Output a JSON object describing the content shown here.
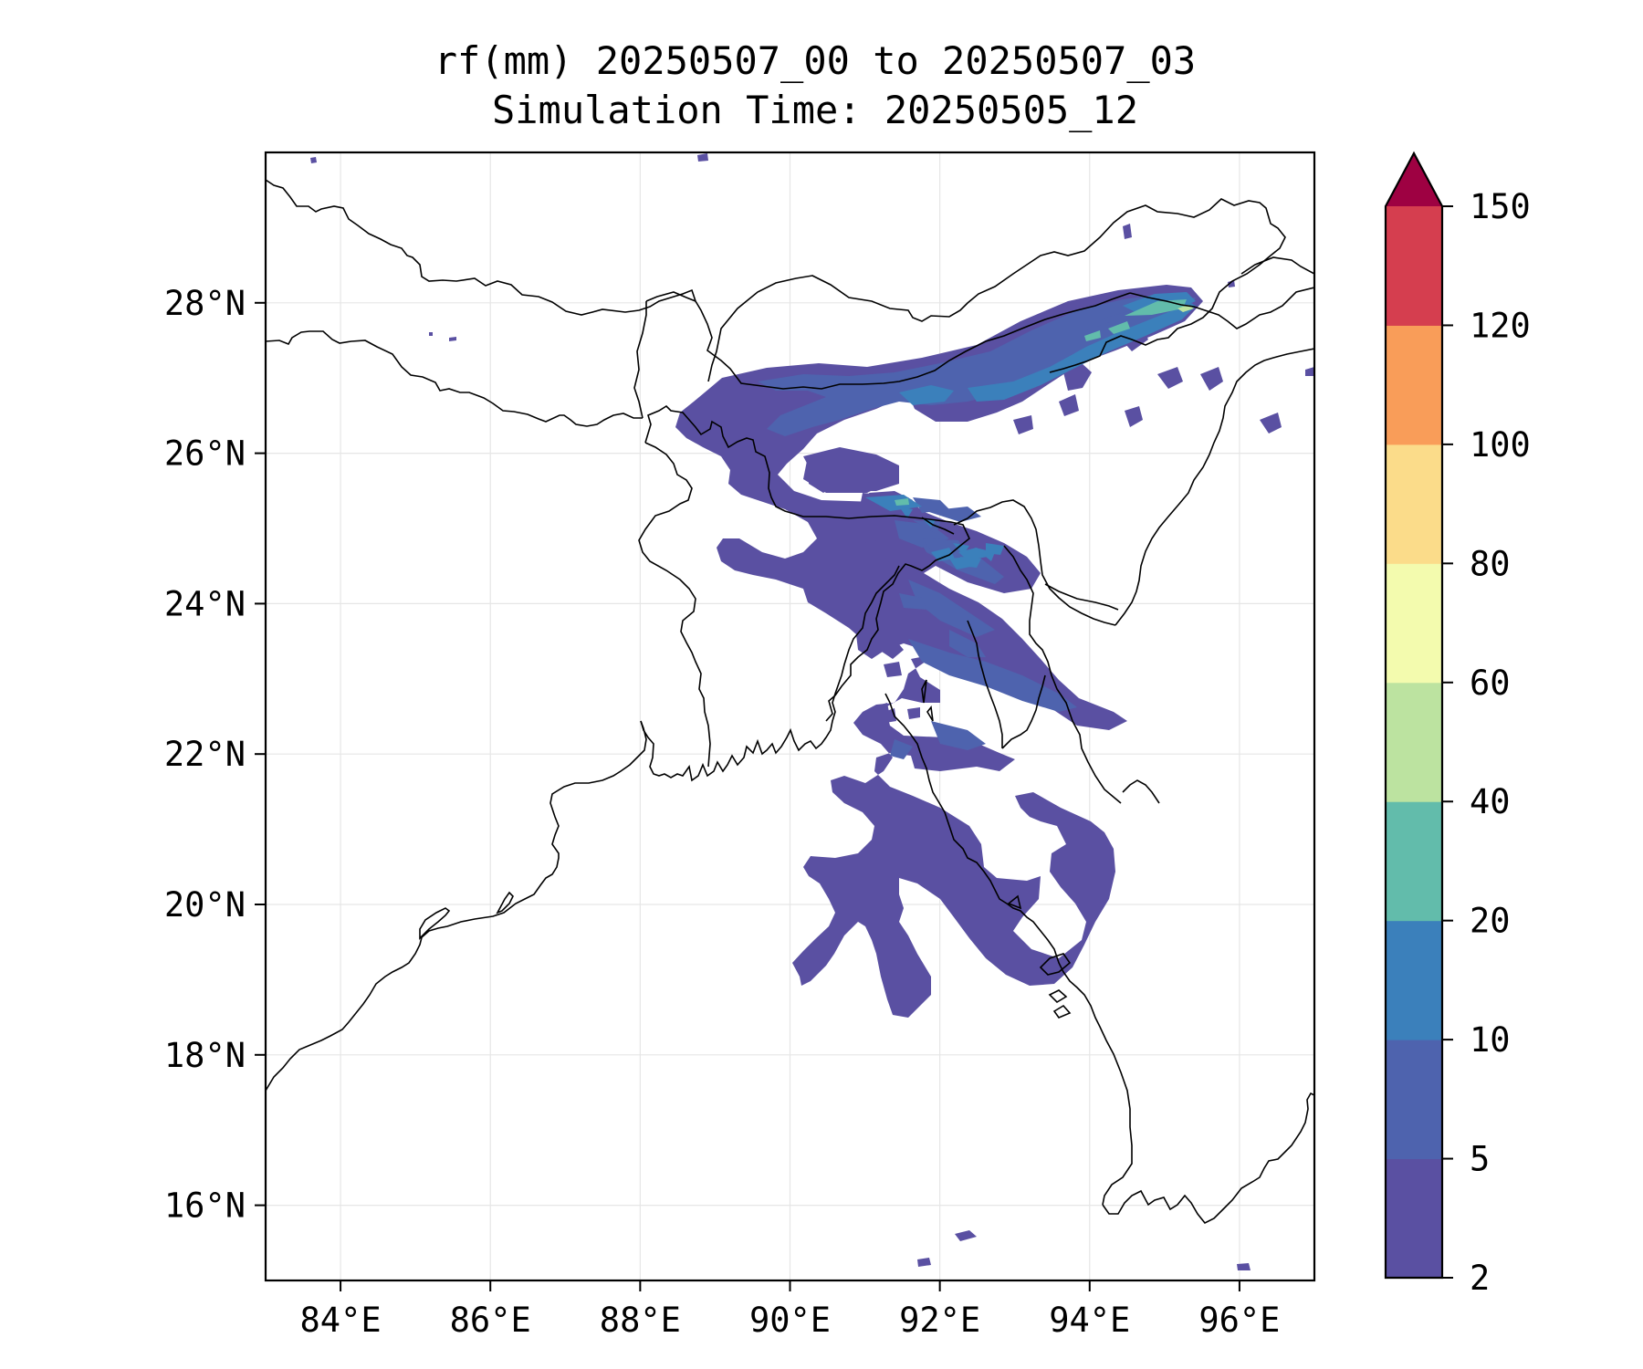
{
  "title": {
    "line1": "rf(mm) 20250507_00 to 20250507_03",
    "line2": "Simulation Time: 20250505_12"
  },
  "map": {
    "lon_range": [
      83,
      97
    ],
    "lat_range": [
      15,
      30
    ],
    "x_ticks": [
      {
        "value": 84,
        "label": "84°E"
      },
      {
        "value": 86,
        "label": "86°E"
      },
      {
        "value": 88,
        "label": "88°E"
      },
      {
        "value": 90,
        "label": "90°E"
      },
      {
        "value": 92,
        "label": "92°E"
      },
      {
        "value": 94,
        "label": "94°E"
      },
      {
        "value": 96,
        "label": "96°E"
      }
    ],
    "y_ticks": [
      {
        "value": 16,
        "label": "16°N"
      },
      {
        "value": 18,
        "label": "18°N"
      },
      {
        "value": 20,
        "label": "20°N"
      },
      {
        "value": 22,
        "label": "22°N"
      },
      {
        "value": 24,
        "label": "24°N"
      },
      {
        "value": 26,
        "label": "26°N"
      },
      {
        "value": 28,
        "label": "28°N"
      }
    ],
    "grid": true
  },
  "colorbar": {
    "levels": [
      "2",
      "5",
      "10",
      "20",
      "40",
      "60",
      "80",
      "100",
      "120",
      "150"
    ],
    "colors": [
      "#5a50a2",
      "#4e63ae",
      "#3b80bb",
      "#62bcab",
      "#bce3a0",
      "#f3fbae",
      "#fbdc8a",
      "#f99d59",
      "#d53e4f"
    ],
    "extend_color": "#9e0142",
    "extend": "max"
  },
  "colors": {
    "coastline": "#000000",
    "gridline": "#e6e6e6"
  }
}
